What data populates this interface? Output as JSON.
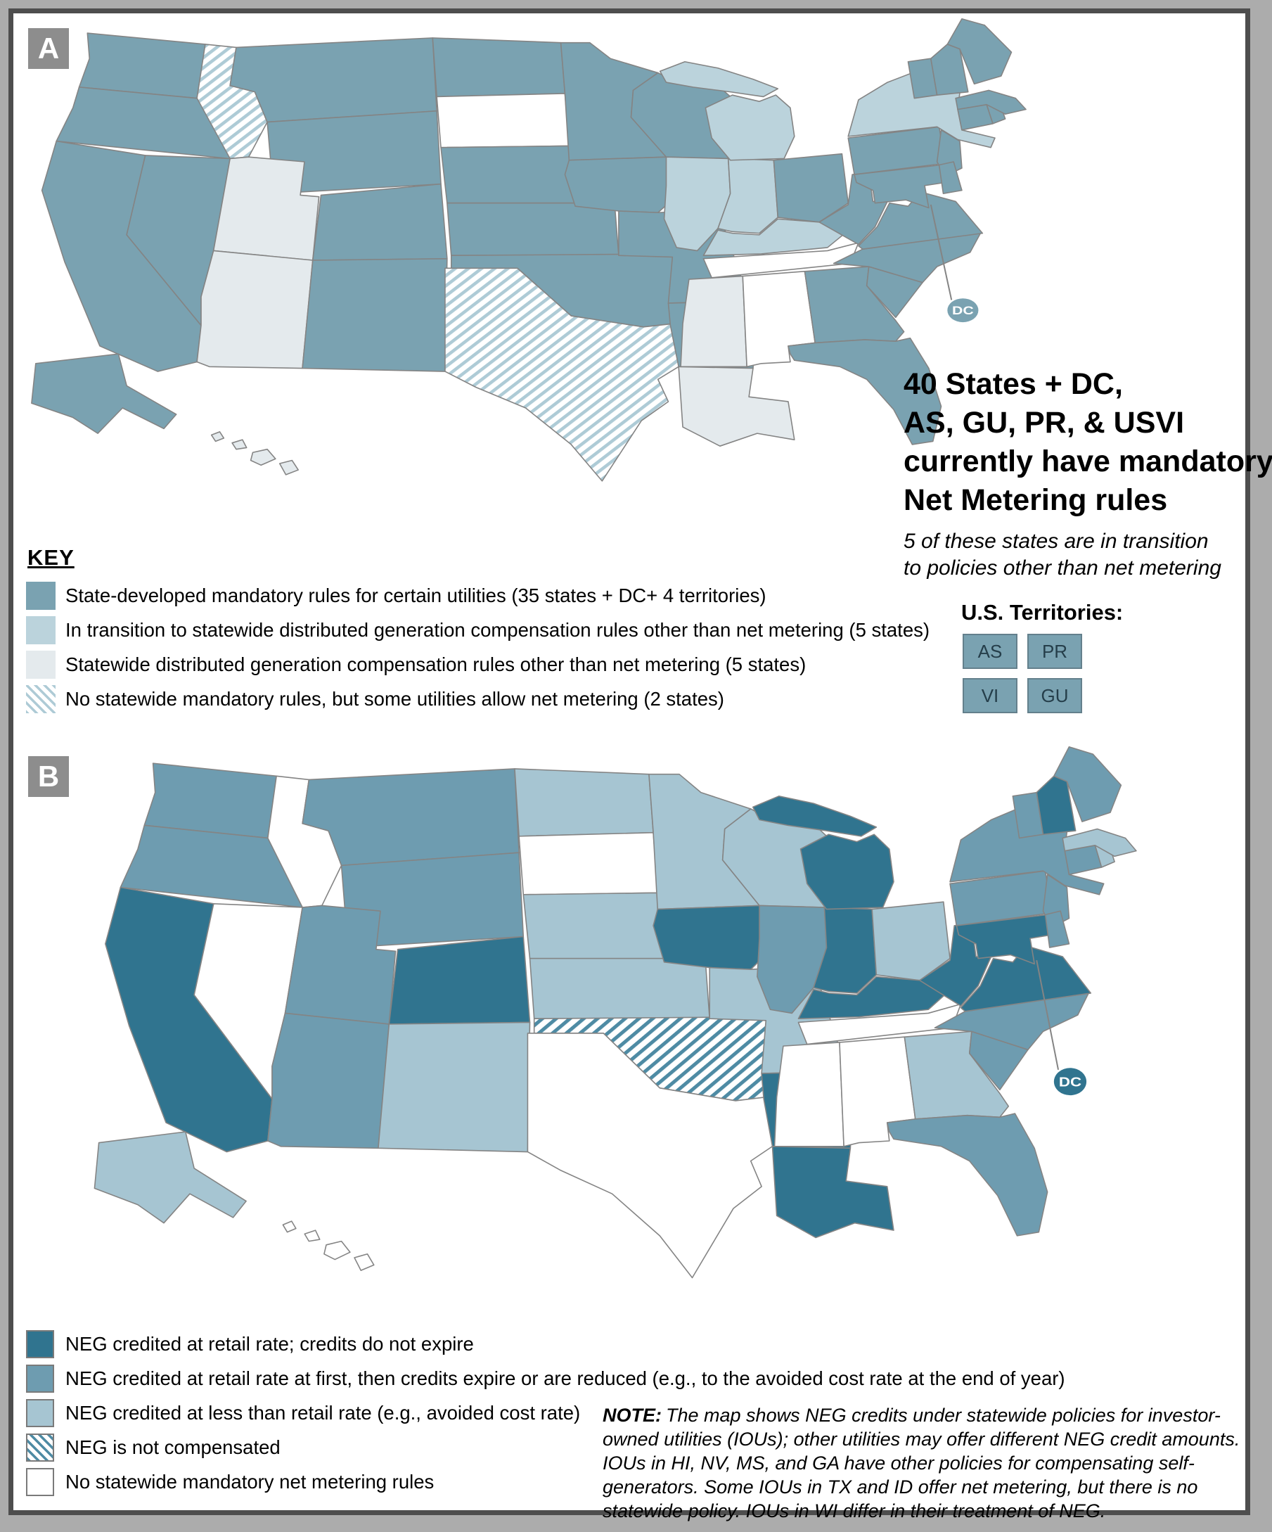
{
  "panels": {
    "a": {
      "label": "A",
      "dc_callout": "DC",
      "title_lines": [
        "40 States + DC,",
        "AS, GU, PR, & USVI",
        "currently have mandatory",
        "Net Metering rules"
      ],
      "subtitle_lines": [
        "5 of these states are in transition",
        "to policies other than net metering"
      ],
      "key_heading": "KEY",
      "legend": [
        {
          "category": "mandatory",
          "style": "solid",
          "color": "#7AA2B1",
          "label": "State-developed mandatory rules for certain utilities (35 states + DC+ 4 territories)"
        },
        {
          "category": "transition",
          "style": "solid",
          "color": "#BBD3DC",
          "label": "In transition to statewide distributed generation compensation rules other than net metering (5 states)"
        },
        {
          "category": "other_rules",
          "style": "solid",
          "color": "#E4EAED",
          "label": "Statewide distributed generation compensation rules other than net metering (5 states)"
        },
        {
          "category": "some_utilities",
          "style": "hatch",
          "color": "#AECBD6",
          "label": "No statewide mandatory rules, but some utilities allow net metering (2 states)"
        }
      ],
      "territories": {
        "heading": "U.S. Territories:",
        "items": [
          "AS",
          "PR",
          "VI",
          "GU"
        ]
      },
      "state_categories": {
        "WA": "mandatory",
        "OR": "mandatory",
        "CA": "mandatory",
        "NV": "mandatory",
        "ID": "some_utilities",
        "MT": "mandatory",
        "WY": "mandatory",
        "UT": "other_rules",
        "CO": "mandatory",
        "AZ": "other_rules",
        "NM": "mandatory",
        "ND": "mandatory",
        "SD": "none",
        "NE": "mandatory",
        "KS": "mandatory",
        "OK": "mandatory",
        "TX": "some_utilities",
        "MN": "mandatory",
        "IA": "mandatory",
        "MO": "mandatory",
        "AR": "mandatory",
        "LA": "other_rules",
        "WI": "mandatory",
        "IL": "transition",
        "IN": "transition",
        "MI": "transition",
        "OH": "mandatory",
        "KY": "transition",
        "TN": "none",
        "MS": "other_rules",
        "AL": "none",
        "GA": "mandatory",
        "FL": "mandatory",
        "SC": "mandatory",
        "NC": "mandatory",
        "VA": "mandatory",
        "WV": "mandatory",
        "PA": "mandatory",
        "NY": "transition",
        "NJ": "mandatory",
        "DE": "mandatory",
        "MD": "mandatory",
        "CT": "mandatory",
        "RI": "mandatory",
        "MA": "mandatory",
        "VT": "mandatory",
        "NH": "mandatory",
        "ME": "mandatory",
        "AK": "mandatory",
        "HI": "other_rules",
        "DC": "mandatory"
      }
    },
    "b": {
      "label": "B",
      "dc_callout": "DC",
      "note_label": "NOTE:",
      "note_text": "The map shows NEG credits under statewide policies for investor-owned utilities (IOUs); other utilities may offer different NEG credit amounts. IOUs in HI, NV, MS, and GA have other policies for compensating self-generators. Some IOUs in TX and ID offer net metering, but there is no statewide policy. IOUs in WI differ in their treatment of NEG.",
      "legend": [
        {
          "category": "retail_no_expiry",
          "style": "solid",
          "color": "#30748F",
          "label": "NEG credited at retail rate; credits do not expire"
        },
        {
          "category": "retail_then_reduced",
          "style": "solid",
          "color": "#6E9CB0",
          "label": "NEG credited at retail rate at first, then credits expire or are reduced (e.g., to the avoided cost rate at the end of year)"
        },
        {
          "category": "below_retail",
          "style": "solid",
          "color": "#A6C5D2",
          "label": "NEG credited at less than retail rate (e.g., avoided cost rate)"
        },
        {
          "category": "not_compensated",
          "style": "hatch",
          "color": "#4E8BA4",
          "label": "NEG is not compensated"
        },
        {
          "category": "none",
          "style": "white",
          "color": "#FFFFFF",
          "label": "No statewide mandatory net metering rules"
        }
      ],
      "state_categories": {
        "WA": "retail_then_reduced",
        "OR": "retail_then_reduced",
        "CA": "retail_no_expiry",
        "NV": "none",
        "ID": "none",
        "MT": "retail_then_reduced",
        "WY": "retail_then_reduced",
        "UT": "retail_then_reduced",
        "CO": "retail_no_expiry",
        "AZ": "retail_then_reduced",
        "NM": "below_retail",
        "ND": "below_retail",
        "SD": "none",
        "NE": "below_retail",
        "KS": "below_retail",
        "OK": "not_compensated",
        "TX": "none",
        "MN": "below_retail",
        "IA": "retail_no_expiry",
        "MO": "below_retail",
        "AR": "retail_no_expiry",
        "LA": "retail_no_expiry",
        "WI": "below_retail",
        "IL": "retail_then_reduced",
        "IN": "retail_no_expiry",
        "MI": "retail_no_expiry",
        "OH": "below_retail",
        "KY": "retail_no_expiry",
        "TN": "none",
        "MS": "none",
        "AL": "none",
        "GA": "below_retail",
        "FL": "retail_then_reduced",
        "SC": "retail_then_reduced",
        "NC": "retail_then_reduced",
        "VA": "retail_no_expiry",
        "WV": "retail_no_expiry",
        "PA": "retail_then_reduced",
        "NY": "retail_then_reduced",
        "NJ": "retail_then_reduced",
        "DE": "retail_then_reduced",
        "MD": "retail_no_expiry",
        "CT": "retail_then_reduced",
        "RI": "below_retail",
        "MA": "below_retail",
        "VT": "retail_then_reduced",
        "NH": "retail_no_expiry",
        "ME": "retail_then_reduced",
        "AK": "below_retail",
        "HI": "none",
        "DC": "retail_no_expiry"
      }
    }
  },
  "colors": {
    "frame": "#4E4E4E",
    "outer_background": "#ACACAC",
    "panel_label_background": "#8D8D8D",
    "state_border": "#848484",
    "territory_box_fill": "#7AA2B1",
    "territory_box_border": "#64808C",
    "no_rules_fill": "#FFFFFF"
  }
}
